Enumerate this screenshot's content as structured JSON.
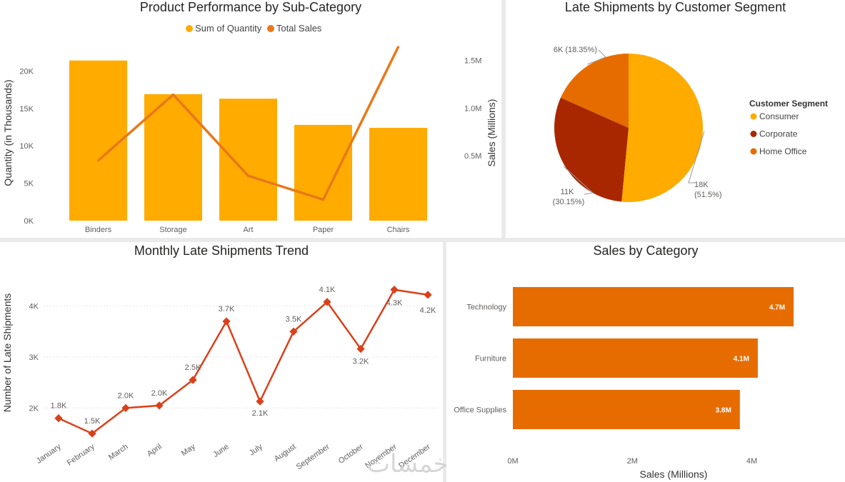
{
  "colors": {
    "yellow": "#FFAB00",
    "orange": "#E66C00",
    "line_orange": "#E8791A",
    "dark_red": "#A82700",
    "red_line": "#D9411C",
    "grid": "#d6d6d6"
  },
  "chart_data": [
    {
      "id": "product-performance",
      "type": "bar",
      "title": "Product Performance by Sub-Category",
      "categories": [
        "Binders",
        "Storage",
        "Art",
        "Paper",
        "Chairs"
      ],
      "series": [
        {
          "name": "Sum of Quantity",
          "type": "bar",
          "axis": "left",
          "values": [
            21400,
            16900,
            16300,
            12800,
            12400
          ]
        },
        {
          "name": "Total Sales",
          "type": "line",
          "axis": "right",
          "values": [
            0.45,
            1.14,
            0.29,
            0.04,
            1.64
          ]
        }
      ],
      "ylabel": "Quantity (in Thousands)",
      "y2label": "Sales (Millions)",
      "ylim": [
        0,
        25000
      ],
      "y2lim": [
        -0.18,
        1.78
      ],
      "yticks": [
        0,
        5000,
        10000,
        15000,
        20000
      ],
      "ytick_labels": [
        "0K",
        "5K",
        "10K",
        "15K",
        "20K"
      ],
      "y2ticks": [
        0.5,
        1.0,
        1.5
      ],
      "y2tick_labels": [
        "0.5M",
        "1.0M",
        "1.5M"
      ],
      "legend": [
        "Sum of Quantity",
        "Total Sales"
      ],
      "legend_position": "top-center"
    },
    {
      "id": "late-shipments-segment",
      "type": "pie",
      "title": "Late Shipments by Customer Segment",
      "legend_title": "Customer Segment",
      "legend_position": "right",
      "slices": [
        {
          "name": "Consumer",
          "value": 18000,
          "percent": 51.5,
          "value_label": "18K",
          "percent_label": "(51.5%)"
        },
        {
          "name": "Corporate",
          "value": 11000,
          "percent": 30.15,
          "value_label": "11K",
          "percent_label": "(30.15%)"
        },
        {
          "name": "Home Office",
          "value": 6000,
          "percent": 18.35,
          "value_label": "6K",
          "percent_label": "(18.35%)"
        }
      ]
    },
    {
      "id": "monthly-late-shipments",
      "type": "line",
      "title": "Monthly Late Shipments Trend",
      "categories": [
        "January",
        "February",
        "March",
        "April",
        "May",
        "June",
        "July",
        "August",
        "September",
        "October",
        "November",
        "December"
      ],
      "values": [
        1.8,
        1.5,
        2.0,
        2.05,
        2.55,
        3.7,
        2.13,
        3.5,
        4.08,
        3.16,
        4.32,
        4.22
      ],
      "data_labels": [
        "1.8K",
        "1.5K",
        "2.0K",
        "2.0K",
        "2.5K",
        "3.7K",
        "2.1K",
        "3.5K",
        "4.1K",
        "3.2K",
        "4.3K",
        "4.2K"
      ],
      "ylabel": "Number of Late Shipments",
      "ylim": [
        1.25,
        4.75
      ],
      "yticks": [
        2,
        3,
        4
      ],
      "ytick_labels": [
        "2K",
        "3K",
        "4K"
      ],
      "grid": true
    },
    {
      "id": "sales-by-category",
      "type": "bar",
      "orientation": "horizontal",
      "title": "Sales by Category",
      "categories": [
        "Technology",
        "Furniture",
        "Office Supplies"
      ],
      "values": [
        4.7,
        4.1,
        3.8
      ],
      "data_labels": [
        "4.7M",
        "4.1M",
        "3.8M"
      ],
      "xlabel": "Sales (Millions)",
      "xlim": [
        0,
        4.95
      ],
      "xticks": [
        0,
        2,
        4
      ],
      "xtick_labels": [
        "0M",
        "2M",
        "4M"
      ]
    }
  ],
  "watermark": "خمسات"
}
